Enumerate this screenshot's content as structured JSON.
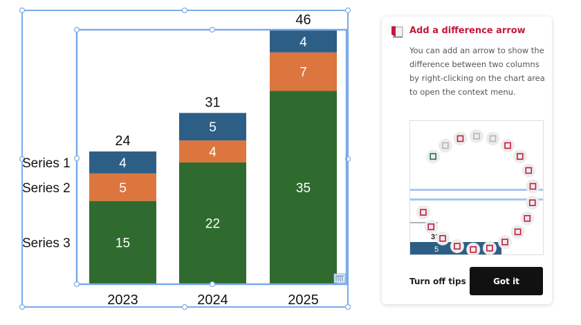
{
  "chart_data": {
    "type": "bar",
    "stacked": true,
    "categories": [
      "2023",
      "2024",
      "2025"
    ],
    "series": [
      {
        "name": "Series 1",
        "values": [
          4,
          5,
          4
        ],
        "color": "#2d5f86"
      },
      {
        "name": "Series 2",
        "values": [
          5,
          4,
          7
        ],
        "color": "#dc763e"
      },
      {
        "name": "Series 3",
        "values": [
          15,
          22,
          35
        ],
        "color": "#2f6b2f"
      }
    ],
    "totals": [
      24,
      31,
      46
    ],
    "title": "",
    "xlabel": "",
    "ylabel": "",
    "ylim": [
      0,
      46
    ],
    "grid": false,
    "legend": "left, aligned to first column segments"
  },
  "colors": {
    "selection": "#7aaaea",
    "tip_title": "#c4183c",
    "button_dark": "#111111"
  },
  "tip": {
    "icon": "difference-arrow-tip-icon",
    "title": "Add a difference arrow",
    "body": "You can add an arrow to show the difference between two columns by right-clicking on the chart area to open the context menu.",
    "preview": {
      "label_value": "31",
      "bar_value": "5",
      "menu_icons": [
        "excel-datasheet-icon",
        "copy-icon",
        "delete-icon",
        "column-gap-icon",
        "difference-icon",
        "sum-remove-icon",
        "sum-icon",
        "value-42-remove-icon",
        "category-remove-icon",
        "series-remove-icon",
        "legend-icon",
        "category-axis-icon",
        "value-axis-icon",
        "difference-arrow-icon",
        "level-difference-icon",
        "line-arrow-icon",
        "connector-icon",
        "cagr-arrow-icon",
        "column-difference-icon"
      ]
    },
    "turn_off_label": "Turn off tips",
    "got_it_label": "Got it"
  }
}
